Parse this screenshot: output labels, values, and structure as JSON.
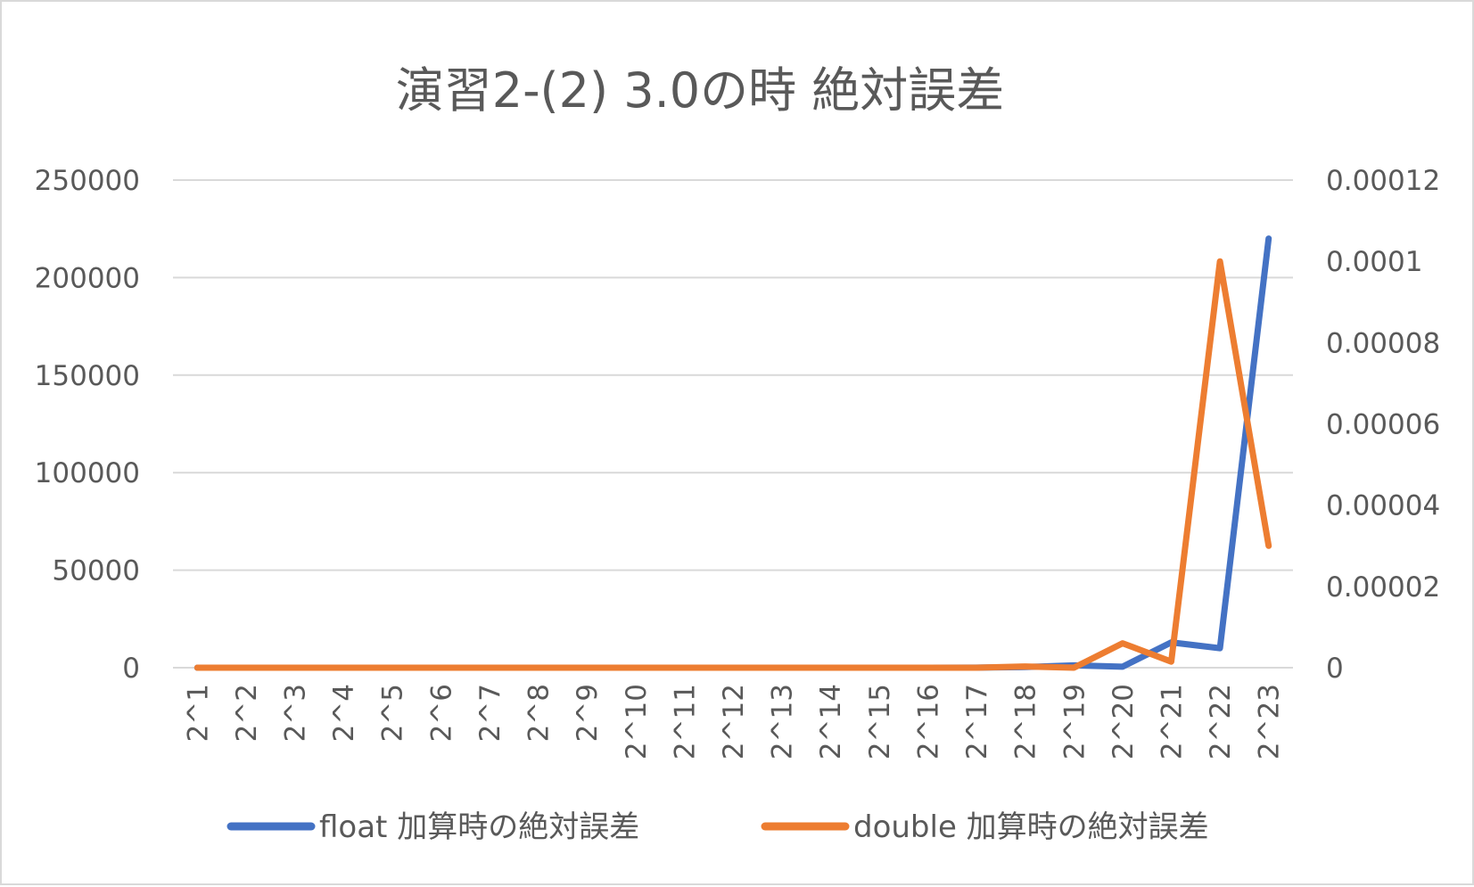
{
  "chart_data": {
    "type": "line",
    "title": "演習2-(2) 3.0の時 絶対誤差",
    "xlabel": "",
    "ylabel": "",
    "categories": [
      "2^1",
      "2^2",
      "2^3",
      "2^4",
      "2^5",
      "2^6",
      "2^7",
      "2^8",
      "2^9",
      "2^10",
      "2^11",
      "2^12",
      "2^13",
      "2^14",
      "2^15",
      "2^16",
      "2^17",
      "2^18",
      "2^19",
      "2^20",
      "2^21",
      "2^22",
      "2^23"
    ],
    "y_left": {
      "ylim": [
        0,
        250000
      ],
      "ticks": [
        0,
        50000,
        100000,
        150000,
        200000,
        250000
      ],
      "tick_labels": [
        "0",
        "50000",
        "100000",
        "150000",
        "200000",
        "250000"
      ]
    },
    "y_right": {
      "ylim": [
        0,
        0.00012
      ],
      "ticks": [
        0,
        2e-05,
        4e-05,
        6e-05,
        8e-05,
        0.0001,
        0.00012
      ],
      "tick_labels": [
        "0",
        "0.00002",
        "0.00004",
        "0.00006",
        "0.00008",
        "0.0001",
        "0.00012"
      ]
    },
    "series": [
      {
        "name": "float 加算時の絶対誤差",
        "axis": "left",
        "color": "#4472c4",
        "values": [
          0,
          0,
          0,
          0,
          0,
          0,
          0,
          0,
          0,
          0,
          0,
          0,
          0,
          0,
          0,
          0,
          50,
          300,
          1200,
          500,
          13000,
          10000,
          220000
        ]
      },
      {
        "name": "double 加算時の絶対誤差",
        "axis": "right",
        "color": "#ed7d31",
        "values": [
          0,
          0,
          0,
          0,
          0,
          0,
          0,
          0,
          0,
          0,
          0,
          0,
          0,
          0,
          0,
          0,
          0,
          3e-07,
          0,
          6e-06,
          1.5e-06,
          0.0001,
          3e-05
        ]
      }
    ],
    "grid": true,
    "legend_position": "bottom"
  }
}
